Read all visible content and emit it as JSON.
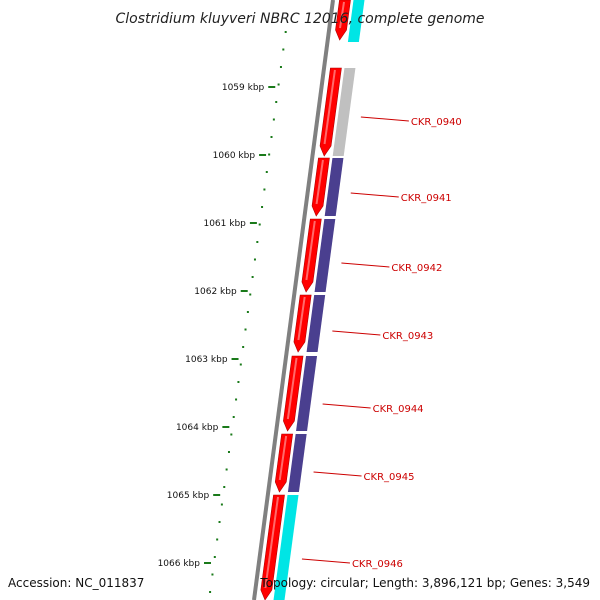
{
  "title": "Clostridium kluyveri NBRC 12016, complete genome",
  "footer": {
    "accession": "Accession: NC_011837",
    "topology": "Topology: circular; Length: 3,896,121 bp; Genes: 3,549"
  },
  "scale": {
    "kbp_ticks": [
      {
        "label": "1059 kbp",
        "kb": 1059
      },
      {
        "label": "1060 kbp",
        "kb": 1060
      },
      {
        "label": "1061 kbp",
        "kb": 1061
      },
      {
        "label": "1062 kbp",
        "kb": 1062
      },
      {
        "label": "1063 kbp",
        "kb": 1063
      },
      {
        "label": "1064 kbp",
        "kb": 1064
      },
      {
        "label": "1065 kbp",
        "kb": 1065
      },
      {
        "label": "1066 kbp",
        "kb": 1066
      }
    ]
  },
  "genes": [
    {
      "label": "CKR_0940",
      "cog_color": "#c0c0c0"
    },
    {
      "label": "CKR_0941",
      "cog_color": "#4a3f8f"
    },
    {
      "label": "CKR_0942",
      "cog_color": "#4a3f8f"
    },
    {
      "label": "CKR_0943",
      "cog_color": "#4a3f8f"
    },
    {
      "label": "CKR_0944",
      "cog_color": "#4a3f8f"
    },
    {
      "label": "CKR_0945",
      "cog_color": "#4a3f8f"
    },
    {
      "label": "CKR_0946",
      "cog_color": "#00e5e5"
    }
  ],
  "colors": {
    "cds": "#ff0000",
    "backbone": "#808080",
    "scale_dots": "#1a7a1a",
    "label": "#cc0000"
  }
}
